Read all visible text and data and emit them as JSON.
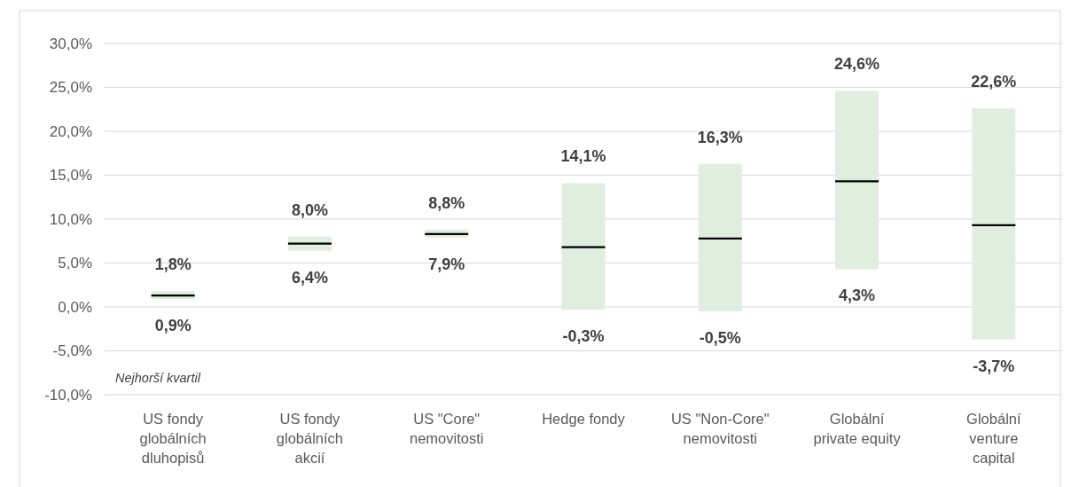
{
  "chart_data": {
    "type": "box",
    "categories": [
      "US fondy globálních dluhopisů",
      "US fondy globálních akcií",
      "US \"Core\" nemovitosti",
      "Hedge fondy",
      "US \"Non-Core\" nemovitosti",
      "Globální private equity",
      "Globální venture capital"
    ],
    "color": "#e0eee0",
    "boxes": [
      {
        "low": 0.9,
        "q1": 0.9,
        "median": 1.3,
        "q3": 1.8,
        "high": 1.8
      },
      {
        "low": 6.4,
        "q1": 6.4,
        "median": 7.2,
        "q3": 8.0,
        "high": 8.0
      },
      {
        "low": 7.9,
        "q1": 7.9,
        "median": 8.3,
        "q3": 8.8,
        "high": 8.8
      },
      {
        "low": -0.3,
        "q1": -0.3,
        "median": 6.8,
        "q3": 14.1,
        "high": 14.1
      },
      {
        "low": -0.5,
        "q1": -0.5,
        "median": 7.8,
        "q3": 16.3,
        "high": 16.3
      },
      {
        "low": 4.3,
        "q1": 4.3,
        "median": 14.3,
        "q3": 24.6,
        "high": 24.6
      },
      {
        "low": -3.7,
        "q1": -3.7,
        "median": 9.3,
        "q3": 22.6,
        "high": 22.6
      }
    ],
    "ylim": [
      -10,
      30
    ],
    "yticks": [
      {
        "value": -10,
        "label": "-10,0%"
      },
      {
        "value": -5,
        "label": "-5,0%"
      },
      {
        "value": 0,
        "label": "0,0%"
      },
      {
        "value": 5,
        "label": "5,0%"
      },
      {
        "value": 10,
        "label": "10,0%"
      },
      {
        "value": 15,
        "label": "15,0%"
      },
      {
        "value": 20,
        "label": "20,0%"
      },
      {
        "value": 25,
        "label": "25,0%"
      },
      {
        "value": 30,
        "label": "30,0%"
      }
    ],
    "grid": "y",
    "annotations": [
      {
        "text": "1,8%",
        "x": "US fondy globálních dluhopisů",
        "y": 1.8
      },
      {
        "text": "0,9%",
        "x": "US fondy globálních dluhopisů",
        "y": 0.9
      },
      {
        "text": "8,0%",
        "x": "US fondy globálních akcií",
        "y": 8.0
      },
      {
        "text": "6,4%",
        "x": "US fondy globálních akcií",
        "y": 6.4
      },
      {
        "text": "8,8%",
        "x": "US \"Core\" nemovitosti",
        "y": 8.8
      },
      {
        "text": "7,9%",
        "x": "US \"Core\" nemovitosti",
        "y": 7.9
      },
      {
        "text": "14,1%",
        "x": "Hedge fondy",
        "y": 14.1
      },
      {
        "text": "-0,3%",
        "x": "Hedge fondy",
        "y": -0.3
      },
      {
        "text": "16,3%",
        "x": "US \"Non-Core\" nemovitosti",
        "y": 16.3
      },
      {
        "text": "-0,5%",
        "x": "US \"Non-Core\" nemovitosti",
        "y": -0.5
      },
      {
        "text": "24,6%",
        "x": "Globální private equity",
        "y": 24.6
      },
      {
        "text": "4,3%",
        "x": "Globální private equity",
        "y": 4.3
      },
      {
        "text": "22,6%",
        "x": "Globální venture capital",
        "y": 22.6
      },
      {
        "text": "-3,7%",
        "x": "Globální venture capital",
        "y": -3.7
      },
      "Nejhorší kvartil"
    ]
  }
}
